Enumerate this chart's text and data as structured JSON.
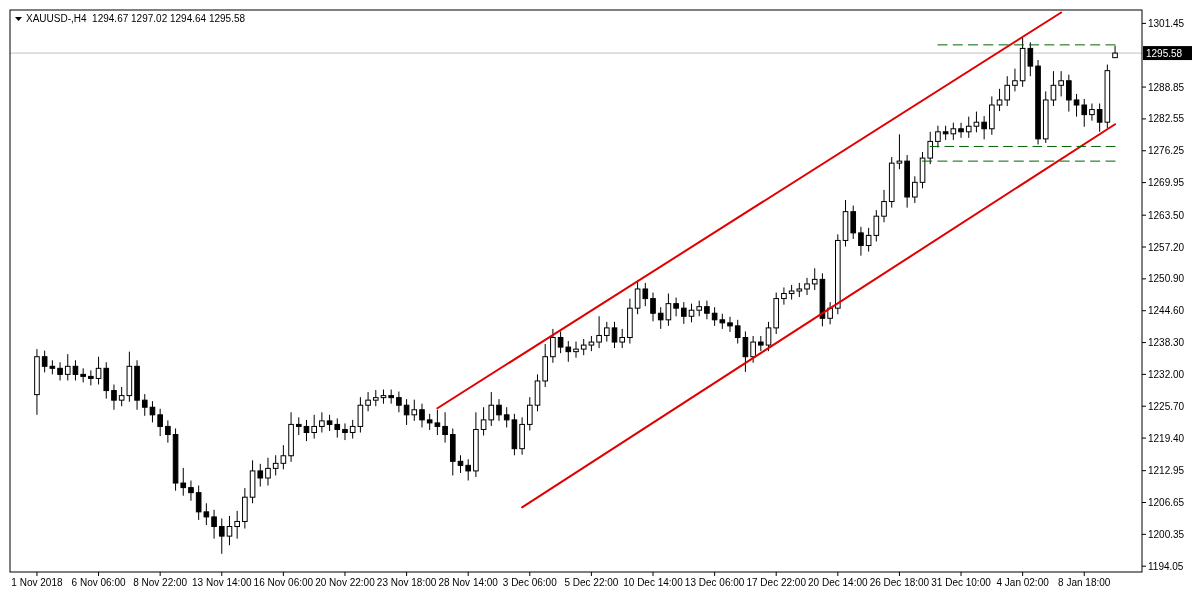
{
  "chart_data": {
    "type": "candlestick",
    "title": "XAUUSD-,H4  1294.67 1297.02 1294.64 1295.58",
    "categories": [
      "1 Nov 2018",
      null,
      null,
      null,
      null,
      null,
      null,
      null,
      "6 Nov 06:00",
      null,
      null,
      null,
      null,
      null,
      null,
      null,
      "8 Nov 22:00",
      null,
      null,
      null,
      null,
      null,
      null,
      null,
      "13 Nov 14:00",
      null,
      null,
      null,
      null,
      null,
      null,
      null,
      "16 Nov 06:00",
      null,
      null,
      null,
      null,
      null,
      null,
      null,
      "20 Nov 22:00",
      null,
      null,
      null,
      null,
      null,
      null,
      null,
      "23 Nov 18:00",
      null,
      null,
      null,
      null,
      null,
      null,
      null,
      "28 Nov 14:00",
      null,
      null,
      null,
      null,
      null,
      null,
      null,
      "3 Dec 06:00",
      null,
      null,
      null,
      null,
      null,
      null,
      null,
      "5 Dec 22:00",
      null,
      null,
      null,
      null,
      null,
      null,
      null,
      "10 Dec 14:00",
      null,
      null,
      null,
      null,
      null,
      null,
      null,
      "13 Dec 06:00",
      null,
      null,
      null,
      null,
      null,
      null,
      null,
      "17 Dec 22:00",
      null,
      null,
      null,
      null,
      null,
      null,
      null,
      "20 Dec 14:00",
      null,
      null,
      null,
      null,
      null,
      null,
      null,
      "26 Dec 18:00",
      null,
      null,
      null,
      null,
      null,
      null,
      null,
      "31 Dec 10:00",
      null,
      null,
      null,
      null,
      null,
      null,
      null,
      "4 Jan 02:00",
      null,
      null,
      null,
      null,
      null,
      null,
      null,
      "8 Jan 18:00",
      null,
      null,
      null,
      null
    ],
    "ylim": [
      1192.9,
      1304.1
    ],
    "yticks": [
      1301.45,
      1288.85,
      1282.55,
      1276.25,
      1269.95,
      {
        "value": 1263.5,
        "label": "1263.50"
      },
      {
        "value": 1257.2,
        "label": "1257.20"
      },
      {
        "value": 1250.9,
        "label": "1250.90"
      },
      {
        "value": 1244.6,
        "label": "1244.60"
      },
      {
        "value": 1238.3,
        "label": "1238.30"
      },
      {
        "value": 1232,
        "label": "1232.00"
      },
      {
        "value": 1225.7,
        "label": "1225.70"
      },
      {
        "value": 1219.4,
        "label": "1219.40"
      },
      1212.95,
      1206.65,
      1200.35,
      1194.05
    ],
    "grid": false,
    "ref_lines": [
      {
        "axis": "y",
        "value": 1295.58,
        "label": "1295.58",
        "color": "#c0c0c0"
      }
    ],
    "series": [
      {
        "color": "#000000",
        "ohlc": [
          [
            1228.0,
            1237.0,
            1224.0,
            1235.5
          ],
          [
            1235.5,
            1236.7,
            1232.4,
            1233.6
          ],
          [
            1233.6,
            1234.8,
            1232.0,
            1233.2
          ],
          [
            1233.2,
            1234.4,
            1230.8,
            1232.0
          ],
          [
            1232.0,
            1236.0,
            1230.8,
            1233.6
          ],
          [
            1233.6,
            1234.8,
            1230.8,
            1232.0
          ],
          [
            1232.0,
            1233.2,
            1230.4,
            1231.6
          ],
          [
            1231.6,
            1232.8,
            1229.8,
            1231.2
          ],
          [
            1231.2,
            1235.5,
            1230.0,
            1233.2
          ],
          [
            1233.2,
            1234.4,
            1227.2,
            1228.8
          ],
          [
            1228.8,
            1230.0,
            1225.0,
            1226.9
          ],
          [
            1226.9,
            1229.5,
            1225.7,
            1227.8
          ],
          [
            1227.8,
            1236.5,
            1226.6,
            1233.6
          ],
          [
            1233.6,
            1234.8,
            1225.0,
            1226.9
          ],
          [
            1226.9,
            1228.1,
            1223.8,
            1225.5
          ],
          [
            1225.5,
            1226.7,
            1222.5,
            1224.0
          ],
          [
            1224.0,
            1225.2,
            1219.8,
            1221.7
          ],
          [
            1221.7,
            1222.9,
            1218.5,
            1220.1
          ],
          [
            1220.1,
            1221.3,
            1209.0,
            1210.5
          ],
          [
            1210.5,
            1213.5,
            1208.0,
            1209.6
          ],
          [
            1209.6,
            1211.0,
            1207.0,
            1208.6
          ],
          [
            1208.6,
            1210.0,
            1203.2,
            1204.8
          ],
          [
            1204.8,
            1206.5,
            1202.2,
            1203.8
          ],
          [
            1203.8,
            1205.2,
            1199.5,
            1201.9
          ],
          [
            1201.9,
            1203.5,
            1196.5,
            1200.0
          ],
          [
            1200.0,
            1204.0,
            1198.2,
            1201.9
          ],
          [
            1201.9,
            1205.0,
            1199.5,
            1202.9
          ],
          [
            1202.9,
            1209.5,
            1201.5,
            1207.7
          ],
          [
            1207.7,
            1215.0,
            1206.5,
            1212.9
          ],
          [
            1212.9,
            1214.3,
            1209.8,
            1211.5
          ],
          [
            1211.5,
            1215.5,
            1210.0,
            1213.4
          ],
          [
            1213.4,
            1216.0,
            1212.0,
            1214.4
          ],
          [
            1214.4,
            1218.0,
            1213.2,
            1215.9
          ],
          [
            1215.9,
            1224.5,
            1214.7,
            1222.1
          ],
          [
            1222.1,
            1223.5,
            1220.0,
            1221.7
          ],
          [
            1221.7,
            1223.0,
            1218.8,
            1220.5
          ],
          [
            1220.5,
            1224.0,
            1219.3,
            1221.7
          ],
          [
            1221.7,
            1224.5,
            1220.5,
            1222.8
          ],
          [
            1222.8,
            1224.0,
            1220.8,
            1222.1
          ],
          [
            1222.1,
            1223.3,
            1219.5,
            1221.1
          ],
          [
            1221.1,
            1222.3,
            1219.0,
            1220.5
          ],
          [
            1220.5,
            1223.0,
            1219.3,
            1221.7
          ],
          [
            1221.7,
            1227.5,
            1220.5,
            1225.9
          ],
          [
            1225.9,
            1228.5,
            1224.7,
            1226.9
          ],
          [
            1226.9,
            1228.9,
            1225.7,
            1227.4
          ],
          [
            1227.4,
            1229.0,
            1226.2,
            1227.8
          ],
          [
            1227.8,
            1229.0,
            1226.2,
            1227.4
          ],
          [
            1227.4,
            1228.6,
            1224.5,
            1225.9
          ],
          [
            1225.9,
            1227.1,
            1222.0,
            1224.0
          ],
          [
            1224.0,
            1227.0,
            1222.8,
            1225.0
          ],
          [
            1225.0,
            1226.2,
            1221.5,
            1223.0
          ],
          [
            1223.0,
            1224.2,
            1221.0,
            1222.4
          ],
          [
            1222.4,
            1225.0,
            1220.0,
            1221.7
          ],
          [
            1221.7,
            1224.5,
            1218.5,
            1220.1
          ],
          [
            1220.1,
            1221.3,
            1212.0,
            1214.8
          ],
          [
            1214.8,
            1216.0,
            1212.5,
            1214.0
          ],
          [
            1214.0,
            1215.2,
            1211.0,
            1212.9
          ],
          [
            1212.9,
            1224.5,
            1211.7,
            1221.1
          ],
          [
            1221.1,
            1225.5,
            1219.9,
            1223.0
          ],
          [
            1223.0,
            1228.5,
            1221.8,
            1225.9
          ],
          [
            1225.9,
            1227.1,
            1222.8,
            1224.0
          ],
          [
            1224.0,
            1225.5,
            1221.5,
            1223.0
          ],
          [
            1223.0,
            1224.2,
            1216.0,
            1217.3
          ],
          [
            1217.3,
            1223.5,
            1216.1,
            1222.1
          ],
          [
            1222.1,
            1227.5,
            1220.9,
            1225.9
          ],
          [
            1225.9,
            1232.0,
            1224.7,
            1230.7
          ],
          [
            1230.7,
            1238.0,
            1229.5,
            1235.5
          ],
          [
            1235.5,
            1241.0,
            1234.3,
            1239.3
          ],
          [
            1239.3,
            1240.5,
            1236.2,
            1237.4
          ],
          [
            1237.4,
            1238.6,
            1234.5,
            1236.5
          ],
          [
            1236.5,
            1238.5,
            1235.3,
            1237.0
          ],
          [
            1237.0,
            1239.0,
            1235.8,
            1237.8
          ],
          [
            1237.8,
            1239.6,
            1236.6,
            1238.4
          ],
          [
            1238.4,
            1243.5,
            1237.2,
            1239.7
          ],
          [
            1239.7,
            1242.4,
            1238.5,
            1241.2
          ],
          [
            1241.2,
            1242.4,
            1237.2,
            1238.4
          ],
          [
            1238.4,
            1241.0,
            1237.2,
            1239.3
          ],
          [
            1239.3,
            1247.0,
            1238.1,
            1245.1
          ],
          [
            1245.1,
            1250.5,
            1243.9,
            1248.9
          ],
          [
            1248.9,
            1250.1,
            1245.5,
            1247.0
          ],
          [
            1247.0,
            1248.2,
            1242.5,
            1244.1
          ],
          [
            1244.1,
            1245.3,
            1241.0,
            1242.8
          ],
          [
            1242.8,
            1248.0,
            1241.6,
            1246.0
          ],
          [
            1246.0,
            1247.2,
            1243.5,
            1245.1
          ],
          [
            1245.1,
            1246.3,
            1242.0,
            1243.5
          ],
          [
            1243.5,
            1246.0,
            1242.3,
            1244.7
          ],
          [
            1244.7,
            1246.6,
            1243.5,
            1245.4
          ],
          [
            1245.4,
            1246.6,
            1242.9,
            1244.1
          ],
          [
            1244.1,
            1245.3,
            1241.6,
            1242.8
          ],
          [
            1242.8,
            1244.0,
            1241.0,
            1242.2
          ],
          [
            1242.2,
            1243.4,
            1240.4,
            1241.6
          ],
          [
            1241.6,
            1242.8,
            1238.1,
            1239.3
          ],
          [
            1239.3,
            1240.5,
            1232.5,
            1235.5
          ],
          [
            1235.5,
            1239.6,
            1234.3,
            1238.4
          ],
          [
            1238.4,
            1239.6,
            1236.6,
            1237.8
          ],
          [
            1237.8,
            1242.4,
            1236.6,
            1241.2
          ],
          [
            1241.2,
            1248.2,
            1240.0,
            1247.0
          ],
          [
            1247.0,
            1249.2,
            1245.8,
            1248.0
          ],
          [
            1248.0,
            1249.7,
            1246.8,
            1248.5
          ],
          [
            1248.5,
            1250.1,
            1247.3,
            1248.9
          ],
          [
            1248.9,
            1251.1,
            1247.7,
            1249.9
          ],
          [
            1249.9,
            1253.0,
            1248.7,
            1250.8
          ],
          [
            1250.8,
            1252.0,
            1241.5,
            1243.1
          ],
          [
            1243.1,
            1246.3,
            1241.9,
            1245.1
          ],
          [
            1245.1,
            1259.7,
            1243.9,
            1258.5
          ],
          [
            1258.5,
            1266.5,
            1257.3,
            1264.2
          ],
          [
            1264.2,
            1265.4,
            1258.8,
            1260.0
          ],
          [
            1260.0,
            1261.2,
            1255.5,
            1257.5
          ],
          [
            1257.5,
            1261.0,
            1256.3,
            1259.5
          ],
          [
            1259.5,
            1264.5,
            1258.3,
            1263.3
          ],
          [
            1263.3,
            1268.5,
            1262.1,
            1266.2
          ],
          [
            1266.2,
            1275.0,
            1265.0,
            1273.8
          ],
          [
            1273.8,
            1279.5,
            1272.6,
            1274.2
          ],
          [
            1274.2,
            1275.4,
            1265.0,
            1267.1
          ],
          [
            1267.1,
            1271.2,
            1265.9,
            1270.0
          ],
          [
            1270.0,
            1276.0,
            1268.8,
            1274.8
          ],
          [
            1274.8,
            1280.0,
            1273.6,
            1278.1
          ],
          [
            1278.1,
            1281.2,
            1276.9,
            1280.0
          ],
          [
            1280.0,
            1281.2,
            1278.4,
            1279.6
          ],
          [
            1279.6,
            1281.8,
            1278.4,
            1280.6
          ],
          [
            1280.6,
            1281.8,
            1278.8,
            1280.0
          ],
          [
            1280.0,
            1283.0,
            1278.8,
            1281.1
          ],
          [
            1281.1,
            1284.0,
            1279.9,
            1281.9
          ],
          [
            1281.9,
            1283.1,
            1278.5,
            1280.6
          ],
          [
            1280.6,
            1287.0,
            1279.4,
            1285.3
          ],
          [
            1285.3,
            1288.5,
            1284.1,
            1286.3
          ],
          [
            1286.3,
            1291.0,
            1285.1,
            1289.2
          ],
          [
            1289.2,
            1292.5,
            1288.0,
            1290.1
          ],
          [
            1290.1,
            1298.6,
            1288.9,
            1296.5
          ],
          [
            1296.5,
            1297.7,
            1291.0,
            1293.0
          ],
          [
            1293.0,
            1294.2,
            1277.5,
            1278.6
          ],
          [
            1278.6,
            1288.0,
            1277.8,
            1286.3
          ],
          [
            1286.3,
            1292.0,
            1285.1,
            1289.2
          ],
          [
            1289.2,
            1292.0,
            1287.0,
            1290.1
          ],
          [
            1290.1,
            1291.3,
            1284.0,
            1286.3
          ],
          [
            1286.3,
            1287.5,
            1283.0,
            1285.3
          ],
          [
            1285.3,
            1286.5,
            1281.0,
            1283.4
          ],
          [
            1283.4,
            1285.6,
            1282.2,
            1284.4
          ],
          [
            1284.4,
            1285.6,
            1280.0,
            1281.9
          ],
          [
            1281.9,
            1293.3,
            1280.7,
            1292.1
          ],
          [
            1294.67,
            1297.02,
            1294.64,
            1295.58
          ]
        ]
      },
      {
        "type": "line",
        "color": "#e00000",
        "line_style": "solid",
        "values": [
          null,
          null,
          null,
          null,
          null,
          null,
          null,
          null,
          null,
          null,
          null,
          null,
          null,
          null,
          null,
          null,
          null,
          null,
          null,
          null,
          null,
          null,
          null,
          null,
          null,
          null,
          null,
          null,
          null,
          null,
          null,
          null,
          null,
          null,
          null,
          null,
          null,
          null,
          null,
          null,
          null,
          null,
          null,
          null,
          null,
          null,
          null,
          null,
          null,
          null,
          null,
          null,
          1225.3,
          null,
          null,
          null,
          null,
          null,
          null,
          null,
          null,
          null,
          null,
          null,
          null,
          null,
          null,
          null,
          null,
          null,
          null,
          null,
          null,
          null,
          null,
          null,
          null,
          null,
          null,
          null,
          null,
          null,
          null,
          null,
          null,
          null,
          null,
          null,
          null,
          null,
          null,
          null,
          null,
          null,
          null,
          null,
          null,
          null,
          null,
          null,
          null,
          null,
          null,
          null,
          null,
          null,
          null,
          null,
          null,
          null,
          null,
          null,
          null,
          null,
          null,
          null,
          null,
          null,
          null,
          null,
          null,
          null,
          null,
          null,
          null,
          null,
          null,
          null,
          null,
          null,
          null,
          null,
          null,
          1303.6,
          null,
          null,
          null,
          null,
          null,
          null,
          null
        ]
      },
      {
        "type": "line",
        "color": "#e00000",
        "line_style": "solid",
        "values": [
          null,
          null,
          null,
          null,
          null,
          null,
          null,
          null,
          null,
          null,
          null,
          null,
          null,
          null,
          null,
          null,
          null,
          null,
          null,
          null,
          null,
          null,
          null,
          null,
          null,
          null,
          null,
          null,
          null,
          null,
          null,
          null,
          null,
          null,
          null,
          null,
          null,
          null,
          null,
          null,
          null,
          null,
          null,
          null,
          null,
          null,
          null,
          null,
          null,
          null,
          null,
          null,
          null,
          null,
          null,
          null,
          null,
          null,
          null,
          null,
          null,
          null,
          null,
          1205.7,
          null,
          null,
          null,
          null,
          null,
          null,
          null,
          null,
          null,
          null,
          null,
          null,
          null,
          null,
          null,
          null,
          null,
          null,
          null,
          null,
          null,
          null,
          null,
          null,
          null,
          null,
          null,
          null,
          null,
          null,
          null,
          null,
          null,
          null,
          null,
          null,
          null,
          null,
          null,
          null,
          null,
          null,
          null,
          null,
          null,
          null,
          null,
          null,
          null,
          null,
          null,
          null,
          null,
          null,
          null,
          null,
          null,
          null,
          null,
          null,
          null,
          null,
          null,
          null,
          null,
          null,
          null,
          null,
          null,
          null,
          null,
          null,
          null,
          null,
          null,
          null,
          1281.5
        ]
      },
      {
        "type": "line",
        "color": "#006400",
        "line_style": "dashed",
        "values": [
          null,
          null,
          null,
          null,
          null,
          null,
          null,
          null,
          null,
          null,
          null,
          null,
          null,
          null,
          null,
          null,
          null,
          null,
          null,
          null,
          null,
          null,
          null,
          null,
          null,
          null,
          null,
          null,
          null,
          null,
          null,
          null,
          null,
          null,
          null,
          null,
          null,
          null,
          null,
          null,
          null,
          null,
          null,
          null,
          null,
          null,
          null,
          null,
          null,
          null,
          null,
          null,
          null,
          null,
          null,
          null,
          null,
          null,
          null,
          null,
          null,
          null,
          null,
          null,
          null,
          null,
          null,
          null,
          null,
          null,
          null,
          null,
          null,
          null,
          null,
          null,
          null,
          null,
          null,
          null,
          null,
          null,
          null,
          null,
          null,
          null,
          null,
          null,
          null,
          null,
          null,
          null,
          null,
          null,
          null,
          null,
          null,
          null,
          null,
          null,
          null,
          null,
          null,
          null,
          null,
          null,
          null,
          null,
          null,
          null,
          null,
          null,
          null,
          null,
          null,
          null,
          null,
          1297.2,
          null,
          null,
          null,
          null,
          null,
          null,
          null,
          null,
          null,
          null,
          null,
          null,
          null,
          null,
          null,
          null,
          null,
          null,
          null,
          null,
          null,
          null,
          1297.2
        ]
      },
      {
        "type": "line",
        "color": "#006400",
        "line_style": "dashed",
        "values": [
          null,
          null,
          null,
          null,
          null,
          null,
          null,
          null,
          null,
          null,
          null,
          null,
          null,
          null,
          null,
          null,
          null,
          null,
          null,
          null,
          null,
          null,
          null,
          null,
          null,
          null,
          null,
          null,
          null,
          null,
          null,
          null,
          null,
          null,
          null,
          null,
          null,
          null,
          null,
          null,
          null,
          null,
          null,
          null,
          null,
          null,
          null,
          null,
          null,
          null,
          null,
          null,
          null,
          null,
          null,
          null,
          null,
          null,
          null,
          null,
          null,
          null,
          null,
          null,
          null,
          null,
          null,
          null,
          null,
          null,
          null,
          null,
          null,
          null,
          null,
          null,
          null,
          null,
          null,
          null,
          null,
          null,
          null,
          null,
          null,
          null,
          null,
          null,
          null,
          null,
          null,
          null,
          null,
          null,
          null,
          null,
          null,
          null,
          null,
          null,
          null,
          null,
          null,
          null,
          null,
          null,
          null,
          null,
          null,
          null,
          null,
          null,
          null,
          null,
          null,
          null,
          1277.1,
          null,
          null,
          null,
          null,
          null,
          null,
          null,
          null,
          null,
          null,
          null,
          null,
          null,
          null,
          null,
          null,
          null,
          null,
          null,
          null,
          null,
          null,
          null,
          1277.1
        ]
      },
      {
        "type": "line",
        "color": "#006400",
        "line_style": "dashed",
        "values": [
          null,
          null,
          null,
          null,
          null,
          null,
          null,
          null,
          null,
          null,
          null,
          null,
          null,
          null,
          null,
          null,
          null,
          null,
          null,
          null,
          null,
          null,
          null,
          null,
          null,
          null,
          null,
          null,
          null,
          null,
          null,
          null,
          null,
          null,
          null,
          null,
          null,
          null,
          null,
          null,
          null,
          null,
          null,
          null,
          null,
          null,
          null,
          null,
          null,
          null,
          null,
          null,
          null,
          null,
          null,
          null,
          null,
          null,
          null,
          null,
          null,
          null,
          null,
          null,
          null,
          null,
          null,
          null,
          null,
          null,
          null,
          null,
          null,
          null,
          null,
          null,
          null,
          null,
          null,
          null,
          null,
          null,
          null,
          null,
          null,
          null,
          null,
          null,
          null,
          null,
          null,
          null,
          null,
          null,
          null,
          null,
          null,
          null,
          null,
          null,
          null,
          null,
          null,
          null,
          null,
          null,
          null,
          null,
          null,
          null,
          null,
          null,
          null,
          null,
          null,
          1274.2,
          null,
          null,
          null,
          null,
          null,
          null,
          null,
          null,
          null,
          null,
          null,
          null,
          null,
          null,
          null,
          null,
          null,
          null,
          null,
          null,
          null,
          null,
          null,
          null,
          1274.2
        ]
      }
    ]
  }
}
